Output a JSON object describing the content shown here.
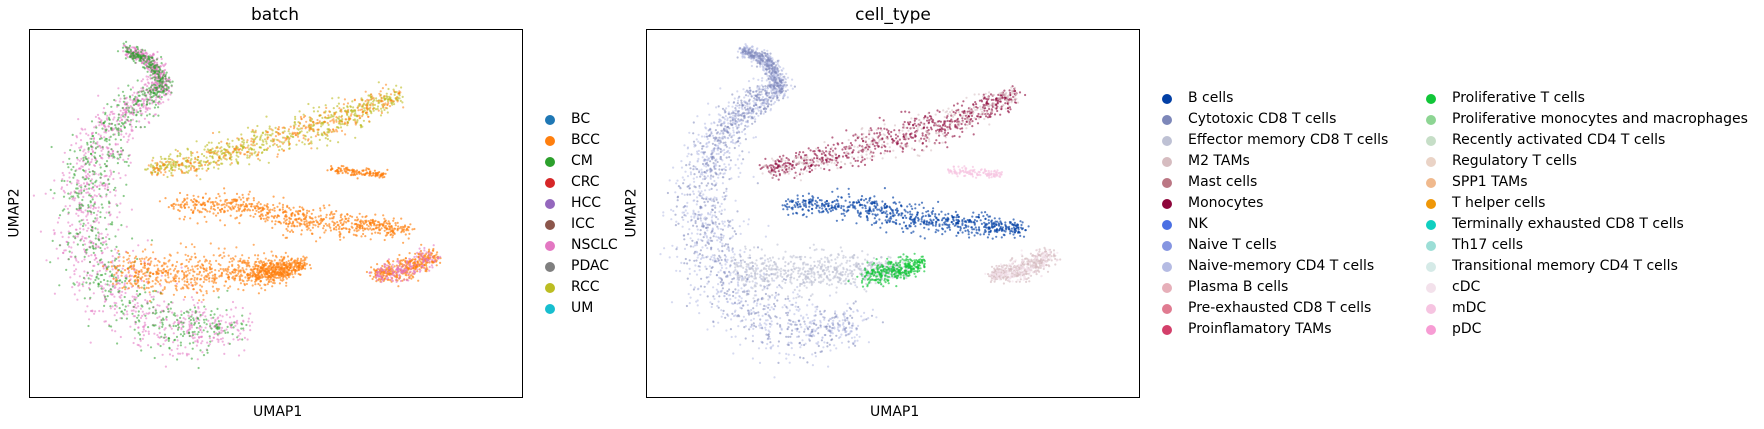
{
  "chart_data": [
    {
      "type": "scatter",
      "title": "batch",
      "xlabel": "UMAP1",
      "ylabel": "UMAP2",
      "grid": false,
      "legend_position": "right",
      "series": [
        {
          "name": "BC",
          "color": "#1f77b4"
        },
        {
          "name": "BCC",
          "color": "#ff7f0e"
        },
        {
          "name": "CM",
          "color": "#2ca02c"
        },
        {
          "name": "CRC",
          "color": "#d62728"
        },
        {
          "name": "HCC",
          "color": "#9467bd"
        },
        {
          "name": "ICC",
          "color": "#8c564b"
        },
        {
          "name": "NSCLC",
          "color": "#e377c2"
        },
        {
          "name": "PDAC",
          "color": "#7f7f7f"
        },
        {
          "name": "RCC",
          "color": "#bcbd22"
        },
        {
          "name": "UM",
          "color": "#17becf"
        }
      ]
    },
    {
      "type": "scatter",
      "title": "cell_type",
      "xlabel": "UMAP1",
      "ylabel": "UMAP2",
      "grid": false,
      "legend_position": "right",
      "series": [
        {
          "name": "B cells",
          "color": "#023fa5"
        },
        {
          "name": "Cytotoxic CD8 T cells",
          "color": "#7d87b9"
        },
        {
          "name": "Effector memory CD8 T cells",
          "color": "#bec1d4"
        },
        {
          "name": "M2 TAMs",
          "color": "#d6bcc0"
        },
        {
          "name": "Mast cells",
          "color": "#bb7784"
        },
        {
          "name": "Monocytes",
          "color": "#8e063b"
        },
        {
          "name": "NK",
          "color": "#4a6fe3"
        },
        {
          "name": "Naive T cells",
          "color": "#8595e1"
        },
        {
          "name": "Naive-memory CD4 T cells",
          "color": "#b5bbe3"
        },
        {
          "name": "Plasma B cells",
          "color": "#e6afb9"
        },
        {
          "name": "Pre-exhausted CD8 T cells",
          "color": "#e07b91"
        },
        {
          "name": "Proinflamatory TAMs",
          "color": "#d33f6a"
        },
        {
          "name": "Proliferative T cells",
          "color": "#11c638"
        },
        {
          "name": "Proliferative monocytes and macrophages",
          "color": "#8dd593"
        },
        {
          "name": "Recently activated CD4 T cells",
          "color": "#c6dec7"
        },
        {
          "name": "Regulatory T cells",
          "color": "#ead3c6"
        },
        {
          "name": "SPP1 TAMs",
          "color": "#f0b98d"
        },
        {
          "name": "T helper cells",
          "color": "#ef9708"
        },
        {
          "name": "Terminally exhausted CD8 T cells",
          "color": "#0fcfc0"
        },
        {
          "name": "Th17 cells",
          "color": "#9cded6"
        },
        {
          "name": "Transitional memory CD4 T cells",
          "color": "#d5eae7"
        },
        {
          "name": "cDC",
          "color": "#f3e1eb"
        },
        {
          "name": "mDC",
          "color": "#f6c4e1"
        },
        {
          "name": "pDC",
          "color": "#f79cd4"
        }
      ]
    }
  ]
}
